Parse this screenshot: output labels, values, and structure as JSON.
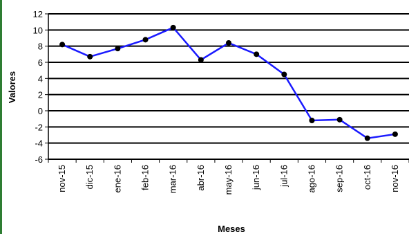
{
  "chart_data": {
    "type": "line",
    "title": "",
    "xlabel": "Meses",
    "ylabel": "Valores",
    "categories": [
      "nov-15",
      "dic-15",
      "ene-16",
      "feb-16",
      "mar-16",
      "abr-16",
      "may-16",
      "jun-16",
      "jul-16",
      "ago-16",
      "sep-16",
      "oct-16",
      "nov-16"
    ],
    "series": [
      {
        "values": [
          8.2,
          6.7,
          7.7,
          8.8,
          10.3,
          6.3,
          8.4,
          7.0,
          4.5,
          -1.2,
          -1.1,
          -3.4,
          -2.9
        ]
      }
    ],
    "ylim": [
      -6,
      12
    ],
    "y_ticks": [
      "12",
      "10",
      "8",
      "6",
      "4",
      "2",
      "0",
      "-2",
      "-4",
      "-6"
    ],
    "grid": true,
    "line_color": "#1a1aff",
    "marker_color": "#000000",
    "frame_color": "#2e7d32"
  }
}
